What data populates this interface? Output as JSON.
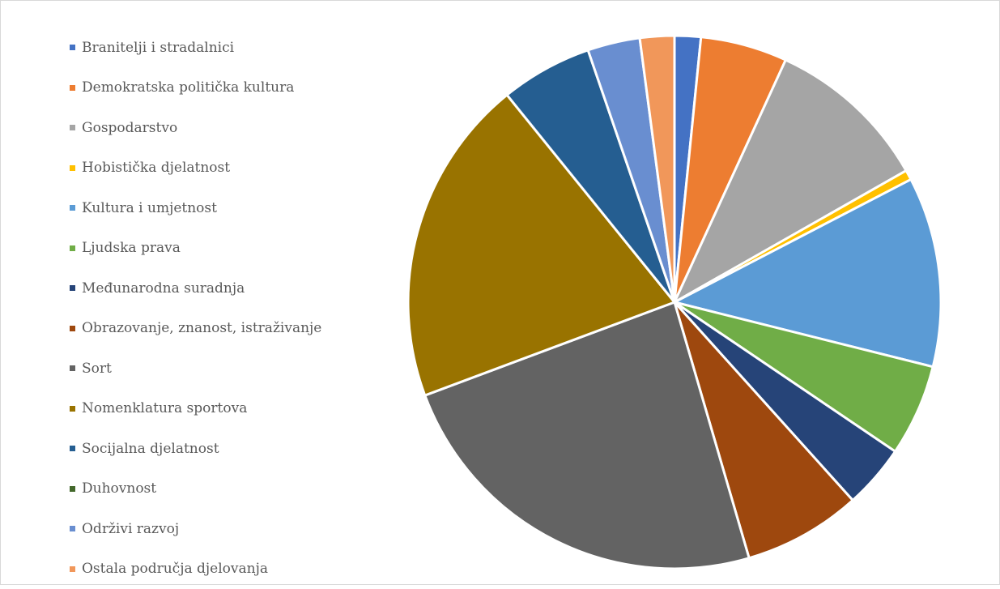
{
  "chart_data": {
    "type": "pie",
    "title": "",
    "legend_position": "left",
    "start": "top",
    "direction": "clockwise",
    "unit": "percent",
    "slices": [
      {
        "label": "Branitelji i stradalnici",
        "value": 1.6,
        "color": "#4472C4"
      },
      {
        "label": "Demokratska politička kultura",
        "value": 5.3,
        "color": "#ED7D31"
      },
      {
        "label": "Gospodarstvo",
        "value": 10.0,
        "color": "#A5A5A5"
      },
      {
        "label": "Hobistička djelatnost",
        "value": 0.6,
        "color": "#FFC000"
      },
      {
        "label": "Kultura i umjetnost",
        "value": 11.6,
        "color": "#5B9BD5"
      },
      {
        "label": "Ljudska prava",
        "value": 5.6,
        "color": "#70AD47"
      },
      {
        "label": "Međunarodna suradnja",
        "value": 3.9,
        "color": "#264478"
      },
      {
        "label": "Obrazovanje, znanost, istraživanje",
        "value": 7.2,
        "color": "#9E480E"
      },
      {
        "label": "Sort",
        "value": 24.0,
        "color": "#636363"
      },
      {
        "label": "Nomenklatura sportova",
        "value": 20.0,
        "color": "#997300"
      },
      {
        "label": "Socijalna djelatnost",
        "value": 5.6,
        "color": "#255E91"
      },
      {
        "label": "Duhovnost",
        "value": 0.0,
        "color": "#43682B"
      },
      {
        "label": "Održivi razvoj",
        "value": 3.2,
        "color": "#698ED0"
      },
      {
        "label": "Ostala područja djelovanja",
        "value": 2.1,
        "color": "#F1975A"
      }
    ]
  }
}
